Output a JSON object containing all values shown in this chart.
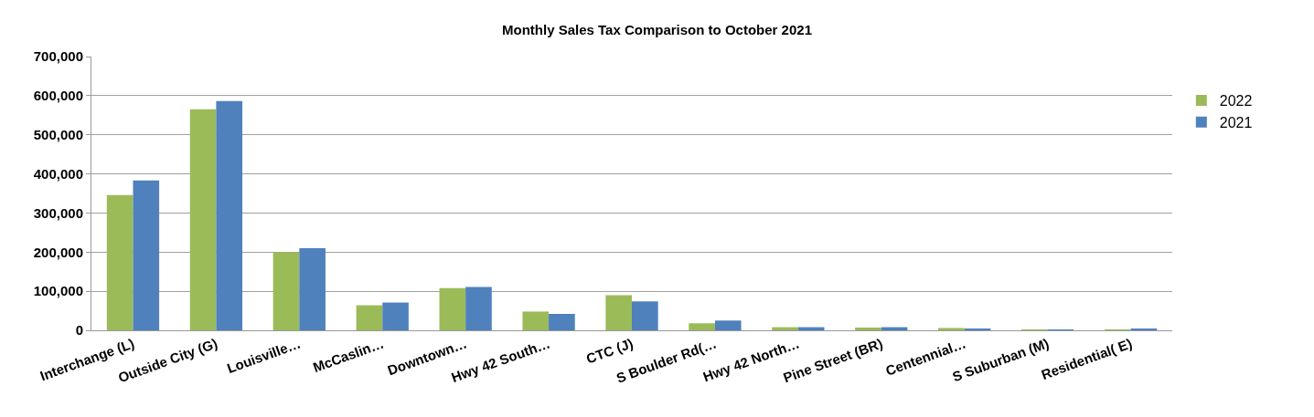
{
  "chart_data": {
    "type": "bar",
    "title": "Monthly Sales Tax Comparison to October 2021",
    "categories": [
      "Interchange (L)",
      "Outside City (G)",
      "Louisville…",
      "McCaslin…",
      "Downtown…",
      "Hwy 42 South…",
      "CTC (J)",
      "S Boulder Rd(…",
      "Hwy 42 North…",
      "Pine Street (BR)",
      "Centennial…",
      "S Suburban (M)",
      "Residential( E)"
    ],
    "series": [
      {
        "name": "2022",
        "color": "#9bbb59",
        "values": [
          346000,
          565000,
          200000,
          64000,
          108000,
          48000,
          90000,
          18000,
          8000,
          7000,
          6000,
          1000,
          2000
        ]
      },
      {
        "name": "2021",
        "color": "#4f81bd",
        "values": [
          383000,
          586000,
          210000,
          71000,
          111000,
          42000,
          74000,
          25000,
          8000,
          8000,
          3000,
          1000,
          3000
        ]
      }
    ],
    "ylim": [
      0,
      700000
    ],
    "yticks": [
      {
        "value": 0,
        "label": "0"
      },
      {
        "value": 100000,
        "label": "100,000"
      },
      {
        "value": 200000,
        "label": "200,000"
      },
      {
        "value": 300000,
        "label": "300,000"
      },
      {
        "value": 400000,
        "label": "400,000"
      },
      {
        "value": 500000,
        "label": "500,000"
      },
      {
        "value": 600000,
        "label": "600,000"
      },
      {
        "value": 700000,
        "label": "700,000"
      }
    ],
    "grid": "y",
    "legend": "right"
  }
}
